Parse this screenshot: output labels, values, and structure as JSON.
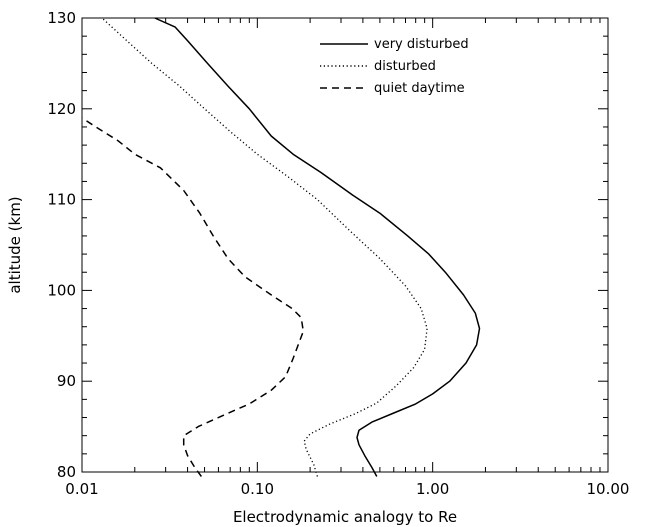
{
  "chart_data": {
    "type": "line",
    "title": "",
    "xlabel": "Electrodynamic analogy to Re",
    "ylabel": "altitude (km)",
    "xscale": "log",
    "xlim": [
      0.01,
      10.0
    ],
    "ylim": [
      80,
      130
    ],
    "xticks": [
      0.01,
      0.1,
      1.0,
      10.0
    ],
    "xtick_labels": [
      "0.01",
      "0.10",
      "1.00",
      "10.00"
    ],
    "yticks": [
      80,
      90,
      100,
      110,
      120,
      130
    ],
    "ytick_labels": [
      "80",
      "90",
      "100",
      "110",
      "120",
      "130"
    ],
    "grid": false,
    "legend_position": "top-right",
    "series": [
      {
        "name": "very disturbed",
        "style": "solid",
        "points": [
          [
            0.48,
            79.5
          ],
          [
            0.45,
            80.5
          ],
          [
            0.41,
            81.8
          ],
          [
            0.38,
            83.0
          ],
          [
            0.37,
            83.8
          ],
          [
            0.38,
            84.6
          ],
          [
            0.45,
            85.5
          ],
          [
            0.6,
            86.5
          ],
          [
            0.8,
            87.5
          ],
          [
            1.0,
            88.6
          ],
          [
            1.25,
            90.0
          ],
          [
            1.55,
            92.0
          ],
          [
            1.78,
            94.0
          ],
          [
            1.85,
            95.8
          ],
          [
            1.75,
            97.5
          ],
          [
            1.5,
            99.5
          ],
          [
            1.18,
            102.0
          ],
          [
            0.95,
            104.0
          ],
          [
            0.72,
            106.0
          ],
          [
            0.5,
            108.5
          ],
          [
            0.35,
            110.5
          ],
          [
            0.23,
            113.0
          ],
          [
            0.16,
            115.0
          ],
          [
            0.12,
            117.0
          ],
          [
            0.09,
            120.0
          ],
          [
            0.068,
            122.5
          ],
          [
            0.052,
            125.0
          ],
          [
            0.04,
            127.5
          ],
          [
            0.034,
            129.0
          ],
          [
            0.026,
            130.0
          ]
        ]
      },
      {
        "name": "disturbed",
        "style": "dotted",
        "points": [
          [
            0.22,
            79.5
          ],
          [
            0.21,
            80.8
          ],
          [
            0.19,
            82.5
          ],
          [
            0.185,
            83.4
          ],
          [
            0.2,
            84.2
          ],
          [
            0.26,
            85.3
          ],
          [
            0.36,
            86.4
          ],
          [
            0.48,
            87.6
          ],
          [
            0.62,
            89.5
          ],
          [
            0.78,
            91.5
          ],
          [
            0.9,
            93.5
          ],
          [
            0.93,
            95.8
          ],
          [
            0.86,
            98.0
          ],
          [
            0.7,
            100.5
          ],
          [
            0.5,
            103.5
          ],
          [
            0.34,
            106.5
          ],
          [
            0.22,
            110.0
          ],
          [
            0.15,
            112.5
          ],
          [
            0.1,
            115.0
          ],
          [
            0.07,
            117.5
          ],
          [
            0.05,
            120.0
          ],
          [
            0.036,
            122.5
          ],
          [
            0.025,
            125.0
          ],
          [
            0.018,
            127.5
          ],
          [
            0.013,
            130.0
          ]
        ]
      },
      {
        "name": "quiet daytime",
        "style": "dashed",
        "points": [
          [
            0.048,
            79.5
          ],
          [
            0.044,
            80.5
          ],
          [
            0.04,
            81.8
          ],
          [
            0.038,
            83.0
          ],
          [
            0.038,
            84.0
          ],
          [
            0.046,
            85.0
          ],
          [
            0.065,
            86.3
          ],
          [
            0.09,
            87.5
          ],
          [
            0.12,
            89.0
          ],
          [
            0.145,
            90.5
          ],
          [
            0.16,
            92.5
          ],
          [
            0.183,
            95.5
          ],
          [
            0.178,
            97.0
          ],
          [
            0.158,
            98.0
          ],
          [
            0.12,
            99.5
          ],
          [
            0.085,
            101.5
          ],
          [
            0.068,
            103.5
          ],
          [
            0.056,
            106.0
          ],
          [
            0.047,
            108.5
          ],
          [
            0.038,
            111.0
          ],
          [
            0.028,
            113.5
          ],
          [
            0.02,
            115.0
          ],
          [
            0.016,
            116.5
          ],
          [
            0.012,
            118.0
          ],
          [
            0.01,
            119.0
          ]
        ]
      }
    ]
  }
}
